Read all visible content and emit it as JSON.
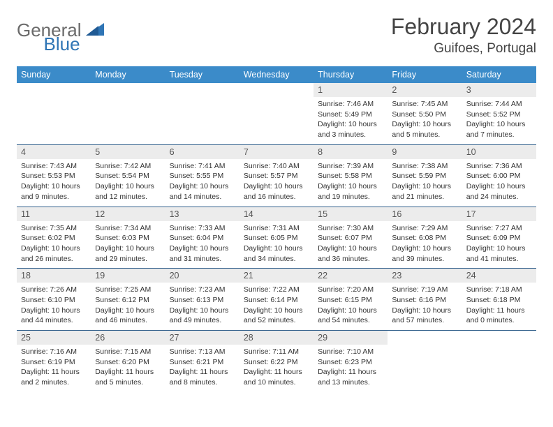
{
  "logo": {
    "part1": "General",
    "part2": "Blue"
  },
  "title": "February 2024",
  "location": "Guifoes, Portugal",
  "colors": {
    "header_bg": "#3b8bc9",
    "header_text": "#ffffff",
    "daynum_bg": "#ececec",
    "row_border": "#2f5e8a",
    "logo_gray": "#6a6a6a",
    "logo_blue": "#2f75b5"
  },
  "weekdays": [
    "Sunday",
    "Monday",
    "Tuesday",
    "Wednesday",
    "Thursday",
    "Friday",
    "Saturday"
  ],
  "weeks": [
    [
      null,
      null,
      null,
      null,
      {
        "n": "1",
        "sr": "Sunrise: 7:46 AM",
        "ss": "Sunset: 5:49 PM",
        "dl": "Daylight: 10 hours and 3 minutes."
      },
      {
        "n": "2",
        "sr": "Sunrise: 7:45 AM",
        "ss": "Sunset: 5:50 PM",
        "dl": "Daylight: 10 hours and 5 minutes."
      },
      {
        "n": "3",
        "sr": "Sunrise: 7:44 AM",
        "ss": "Sunset: 5:52 PM",
        "dl": "Daylight: 10 hours and 7 minutes."
      }
    ],
    [
      {
        "n": "4",
        "sr": "Sunrise: 7:43 AM",
        "ss": "Sunset: 5:53 PM",
        "dl": "Daylight: 10 hours and 9 minutes."
      },
      {
        "n": "5",
        "sr": "Sunrise: 7:42 AM",
        "ss": "Sunset: 5:54 PM",
        "dl": "Daylight: 10 hours and 12 minutes."
      },
      {
        "n": "6",
        "sr": "Sunrise: 7:41 AM",
        "ss": "Sunset: 5:55 PM",
        "dl": "Daylight: 10 hours and 14 minutes."
      },
      {
        "n": "7",
        "sr": "Sunrise: 7:40 AM",
        "ss": "Sunset: 5:57 PM",
        "dl": "Daylight: 10 hours and 16 minutes."
      },
      {
        "n": "8",
        "sr": "Sunrise: 7:39 AM",
        "ss": "Sunset: 5:58 PM",
        "dl": "Daylight: 10 hours and 19 minutes."
      },
      {
        "n": "9",
        "sr": "Sunrise: 7:38 AM",
        "ss": "Sunset: 5:59 PM",
        "dl": "Daylight: 10 hours and 21 minutes."
      },
      {
        "n": "10",
        "sr": "Sunrise: 7:36 AM",
        "ss": "Sunset: 6:00 PM",
        "dl": "Daylight: 10 hours and 24 minutes."
      }
    ],
    [
      {
        "n": "11",
        "sr": "Sunrise: 7:35 AM",
        "ss": "Sunset: 6:02 PM",
        "dl": "Daylight: 10 hours and 26 minutes."
      },
      {
        "n": "12",
        "sr": "Sunrise: 7:34 AM",
        "ss": "Sunset: 6:03 PM",
        "dl": "Daylight: 10 hours and 29 minutes."
      },
      {
        "n": "13",
        "sr": "Sunrise: 7:33 AM",
        "ss": "Sunset: 6:04 PM",
        "dl": "Daylight: 10 hours and 31 minutes."
      },
      {
        "n": "14",
        "sr": "Sunrise: 7:31 AM",
        "ss": "Sunset: 6:05 PM",
        "dl": "Daylight: 10 hours and 34 minutes."
      },
      {
        "n": "15",
        "sr": "Sunrise: 7:30 AM",
        "ss": "Sunset: 6:07 PM",
        "dl": "Daylight: 10 hours and 36 minutes."
      },
      {
        "n": "16",
        "sr": "Sunrise: 7:29 AM",
        "ss": "Sunset: 6:08 PM",
        "dl": "Daylight: 10 hours and 39 minutes."
      },
      {
        "n": "17",
        "sr": "Sunrise: 7:27 AM",
        "ss": "Sunset: 6:09 PM",
        "dl": "Daylight: 10 hours and 41 minutes."
      }
    ],
    [
      {
        "n": "18",
        "sr": "Sunrise: 7:26 AM",
        "ss": "Sunset: 6:10 PM",
        "dl": "Daylight: 10 hours and 44 minutes."
      },
      {
        "n": "19",
        "sr": "Sunrise: 7:25 AM",
        "ss": "Sunset: 6:12 PM",
        "dl": "Daylight: 10 hours and 46 minutes."
      },
      {
        "n": "20",
        "sr": "Sunrise: 7:23 AM",
        "ss": "Sunset: 6:13 PM",
        "dl": "Daylight: 10 hours and 49 minutes."
      },
      {
        "n": "21",
        "sr": "Sunrise: 7:22 AM",
        "ss": "Sunset: 6:14 PM",
        "dl": "Daylight: 10 hours and 52 minutes."
      },
      {
        "n": "22",
        "sr": "Sunrise: 7:20 AM",
        "ss": "Sunset: 6:15 PM",
        "dl": "Daylight: 10 hours and 54 minutes."
      },
      {
        "n": "23",
        "sr": "Sunrise: 7:19 AM",
        "ss": "Sunset: 6:16 PM",
        "dl": "Daylight: 10 hours and 57 minutes."
      },
      {
        "n": "24",
        "sr": "Sunrise: 7:18 AM",
        "ss": "Sunset: 6:18 PM",
        "dl": "Daylight: 11 hours and 0 minutes."
      }
    ],
    [
      {
        "n": "25",
        "sr": "Sunrise: 7:16 AM",
        "ss": "Sunset: 6:19 PM",
        "dl": "Daylight: 11 hours and 2 minutes."
      },
      {
        "n": "26",
        "sr": "Sunrise: 7:15 AM",
        "ss": "Sunset: 6:20 PM",
        "dl": "Daylight: 11 hours and 5 minutes."
      },
      {
        "n": "27",
        "sr": "Sunrise: 7:13 AM",
        "ss": "Sunset: 6:21 PM",
        "dl": "Daylight: 11 hours and 8 minutes."
      },
      {
        "n": "28",
        "sr": "Sunrise: 7:11 AM",
        "ss": "Sunset: 6:22 PM",
        "dl": "Daylight: 11 hours and 10 minutes."
      },
      {
        "n": "29",
        "sr": "Sunrise: 7:10 AM",
        "ss": "Sunset: 6:23 PM",
        "dl": "Daylight: 11 hours and 13 minutes."
      },
      null,
      null
    ]
  ]
}
